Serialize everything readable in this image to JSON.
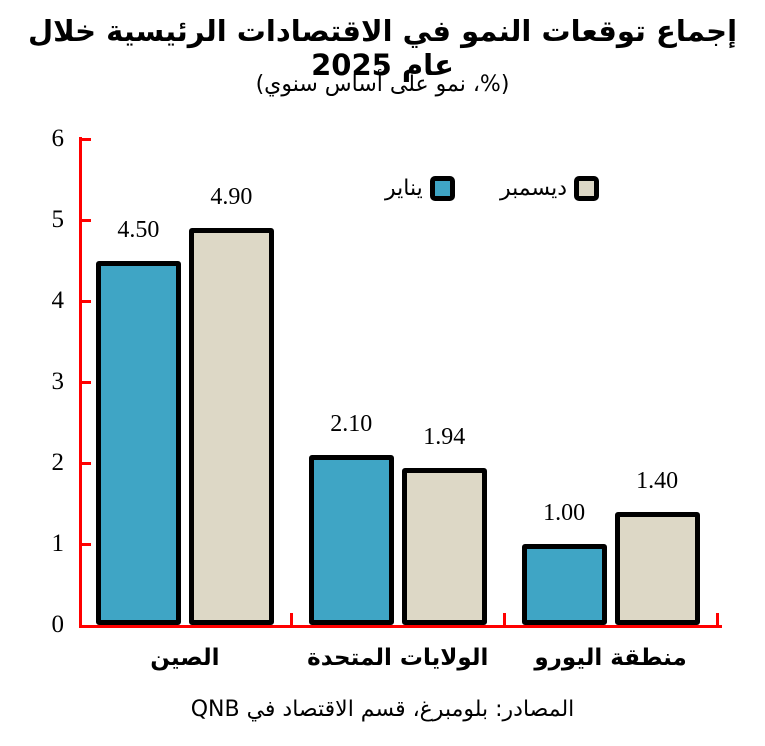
{
  "title": "إجماع توقعات النمو في الاقتصادات الرئيسية خلال عام 2025",
  "subtitle": "(%، نمو على أساس سنوي)",
  "source": "المصادر: بلومبرغ، قسم الاقتصاد في QNB",
  "legend": [
    {
      "label": "يناير",
      "color": "#3FA5C5"
    },
    {
      "label": "ديسمبر",
      "color": "#DDD8C6"
    }
  ],
  "colors": {
    "axis": "#FF0000",
    "bar_border": "#000000",
    "january_fill": "#3FA5C5",
    "december_fill": "#DDD8C6",
    "text": "#000000",
    "background": "#FFFFFF"
  },
  "chart_data": {
    "type": "bar",
    "categories": [
      "الصين",
      "الولايات المتحدة",
      "منطقة اليورو"
    ],
    "series": [
      {
        "name": "يناير",
        "color": "#3FA5C5",
        "values": [
          4.5,
          2.1,
          1.0
        ]
      },
      {
        "name": "ديسمبر",
        "color": "#DDD8C6",
        "values": [
          4.9,
          1.94,
          1.4
        ]
      }
    ],
    "title": "إجماع توقعات النمو في الاقتصادات الرئيسية خلال عام 2025",
    "subtitle": "(%، نمو على أساس سنوي)",
    "xlabel": "",
    "ylabel": "",
    "ylim": [
      0,
      6
    ],
    "yticks": [
      0,
      1,
      2,
      3,
      4,
      5,
      6
    ],
    "grid": false,
    "legend_position": "top-center",
    "value_label_decimals": 2
  }
}
